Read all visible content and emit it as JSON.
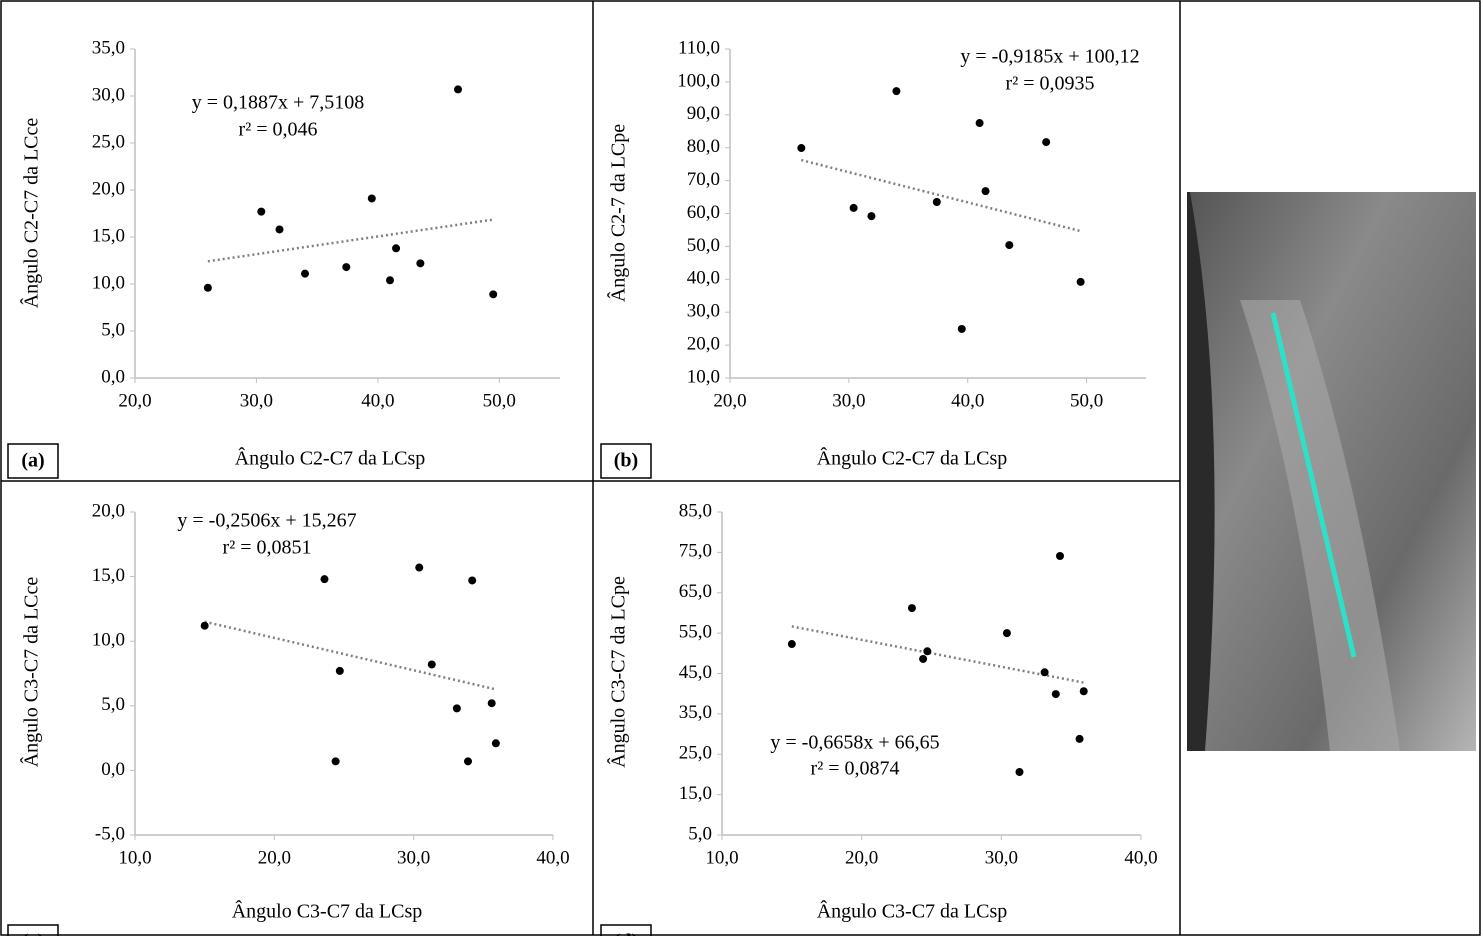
{
  "chart_data": [
    {
      "type": "scatter",
      "label": "(a)",
      "xlabel": "Ângulo C2-C7 da LCsp",
      "ylabel": "Ângulo C2-C7 da LCce",
      "equation": "y = 0,1887x + 7,5108",
      "r2": "r² = 0,046",
      "trendline": {
        "slope": 0.1887,
        "intercept": 7.5108
      },
      "color": "#000000",
      "x": [
        26.0,
        30.4,
        31.9,
        34.0,
        37.4,
        39.5,
        41.0,
        41.5,
        43.5,
        46.6,
        49.5
      ],
      "y": [
        9.6,
        17.7,
        15.8,
        11.1,
        11.8,
        19.1,
        10.4,
        13.8,
        12.2,
        30.7,
        8.9
      ],
      "xlim": [
        20,
        55
      ],
      "ylim": [
        0,
        35
      ],
      "xticks": [
        {
          "value": 20,
          "label": "20,0"
        },
        {
          "value": 30,
          "label": "30,0"
        },
        {
          "value": 40,
          "label": "40,0"
        },
        {
          "value": 50,
          "label": "50,0"
        }
      ],
      "yticks": [
        {
          "value": 0,
          "label": "0,0"
        },
        {
          "value": 5,
          "label": "5,0"
        },
        {
          "value": 10,
          "label": "10,0"
        },
        {
          "value": 15,
          "label": "15,0"
        },
        {
          "value": 20,
          "label": "20,0"
        },
        {
          "value": 25,
          "label": "25,0"
        },
        {
          "value": 30,
          "label": "30,0"
        },
        {
          "value": 35,
          "label": "35,0"
        }
      ]
    },
    {
      "type": "scatter",
      "label": "(b)",
      "xlabel": "Ângulo C2-C7 da LCsp",
      "ylabel": "Ângulo C2-7 da LCpe",
      "equation": "y = -0,9185x + 100,12",
      "r2": "r² = 0,0935",
      "trendline": {
        "slope": -0.9185,
        "intercept": 100.12
      },
      "color": "#000000",
      "x": [
        26.0,
        30.4,
        31.9,
        34.0,
        37.4,
        39.5,
        41.0,
        41.5,
        43.5,
        46.6,
        49.5
      ],
      "y": [
        79.9,
        61.7,
        59.2,
        97.2,
        63.5,
        24.9,
        87.5,
        66.8,
        50.4,
        81.7,
        39.2
      ],
      "xlim": [
        20,
        55
      ],
      "ylim": [
        10,
        110
      ],
      "xticks": [
        {
          "value": 20,
          "label": "20,0"
        },
        {
          "value": 30,
          "label": "30,0"
        },
        {
          "value": 40,
          "label": "40,0"
        },
        {
          "value": 50,
          "label": "50,0"
        }
      ],
      "yticks": [
        {
          "value": 10,
          "label": "10,0"
        },
        {
          "value": 20,
          "label": "20,0"
        },
        {
          "value": 30,
          "label": "30,0"
        },
        {
          "value": 40,
          "label": "40,0"
        },
        {
          "value": 50,
          "label": "50,0"
        },
        {
          "value": 60,
          "label": "60,0"
        },
        {
          "value": 70,
          "label": "70,0"
        },
        {
          "value": 80,
          "label": "80,0"
        },
        {
          "value": 90,
          "label": "90,0"
        },
        {
          "value": 100,
          "label": "100,0"
        },
        {
          "value": 110,
          "label": "110,0"
        }
      ]
    },
    {
      "type": "scatter",
      "label": "(c)",
      "xlabel": "Ângulo C3-C7 da LCsp",
      "ylabel": "Ângulo C3-C7 da LCce",
      "equation": "y = -0,2506x + 15,267",
      "r2": "r² = 0,0851",
      "trendline": {
        "slope": -0.2506,
        "intercept": 15.267
      },
      "color": "#000000",
      "x": [
        15.0,
        23.6,
        24.4,
        24.7,
        30.4,
        31.3,
        33.1,
        33.9,
        34.2,
        35.6,
        35.9
      ],
      "y": [
        11.2,
        14.8,
        0.7,
        7.7,
        15.7,
        8.2,
        4.8,
        0.7,
        14.7,
        5.2,
        2.1
      ],
      "xlim": [
        10,
        40
      ],
      "ylim": [
        -5,
        20
      ],
      "xticks": [
        {
          "value": 10,
          "label": "10,0"
        },
        {
          "value": 20,
          "label": "20,0"
        },
        {
          "value": 30,
          "label": "30,0"
        },
        {
          "value": 40,
          "label": "40,0"
        }
      ],
      "yticks": [
        {
          "value": -5,
          "label": "-5,0"
        },
        {
          "value": 0,
          "label": "0,0"
        },
        {
          "value": 5,
          "label": "5,0"
        },
        {
          "value": 10,
          "label": "10,0"
        },
        {
          "value": 15,
          "label": "15,0"
        },
        {
          "value": 20,
          "label": "20,0"
        }
      ]
    },
    {
      "type": "scatter",
      "label": "(d)",
      "xlabel": "Ângulo C3-C7 da LCsp",
      "ylabel": "Ângulo C3-C7 da LCpe",
      "equation": "y = -0,6658x + 66,65",
      "r2": "r² = 0,0874",
      "trendline": {
        "slope": -0.6658,
        "intercept": 66.65
      },
      "color": "#000000",
      "x": [
        15.0,
        23.6,
        24.4,
        24.7,
        30.4,
        31.3,
        33.1,
        33.9,
        34.2,
        35.6,
        35.9
      ],
      "y": [
        52.3,
        61.2,
        48.6,
        50.5,
        55.0,
        20.6,
        45.3,
        39.9,
        74.1,
        28.8,
        40.6
      ],
      "xlim": [
        10,
        40
      ],
      "ylim": [
        5,
        85
      ],
      "xticks": [
        {
          "value": 10,
          "label": "10,0"
        },
        {
          "value": 20,
          "label": "20,0"
        },
        {
          "value": 30,
          "label": "30,0"
        },
        {
          "value": 40,
          "label": "40,0"
        }
      ],
      "yticks": [
        {
          "value": 5,
          "label": "5,0"
        },
        {
          "value": 15,
          "label": "15,0"
        },
        {
          "value": 25,
          "label": "25,0"
        },
        {
          "value": 35,
          "label": "35,0"
        },
        {
          "value": 45,
          "label": "45,0"
        },
        {
          "value": 55,
          "label": "55,0"
        },
        {
          "value": 65,
          "label": "65,0"
        },
        {
          "value": 75,
          "label": "75,0"
        },
        {
          "value": 85,
          "label": "85,0"
        }
      ]
    }
  ]
}
